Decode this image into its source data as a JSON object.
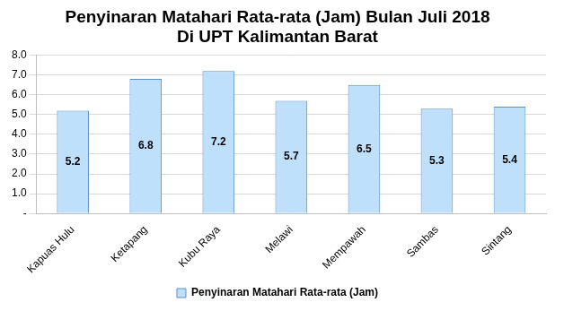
{
  "chart_data": {
    "type": "bar",
    "title": [
      "Penyinaran Matahari Rata-rata (Jam) Bulan Juli 2018",
      "Di UPT Kalimantan Barat"
    ],
    "categories": [
      "Kapuas Hulu",
      "Ketapang",
      "Kubu Raya",
      "Melawi",
      "Mempawah",
      "Sambas",
      "Sintang"
    ],
    "series": [
      {
        "name": "Penyinaran Matahari Rata-rata (Jam)",
        "color": "#bfe0fb",
        "values": [
          5.2,
          6.8,
          7.2,
          5.7,
          6.5,
          5.3,
          5.4
        ]
      }
    ],
    "ylim": [
      0,
      8
    ],
    "yticks": [
      {
        "value": 0,
        "label": "-"
      },
      {
        "value": 1,
        "label": "1.0"
      },
      {
        "value": 2,
        "label": "2.0"
      },
      {
        "value": 3,
        "label": "3.0"
      },
      {
        "value": 4,
        "label": "4.0"
      },
      {
        "value": 5,
        "label": "5.0"
      },
      {
        "value": 6,
        "label": "6.0"
      },
      {
        "value": 7,
        "label": "7.0"
      },
      {
        "value": 8,
        "label": "8.0"
      }
    ],
    "grid": true,
    "legend": "bottom",
    "data_labels": true
  }
}
